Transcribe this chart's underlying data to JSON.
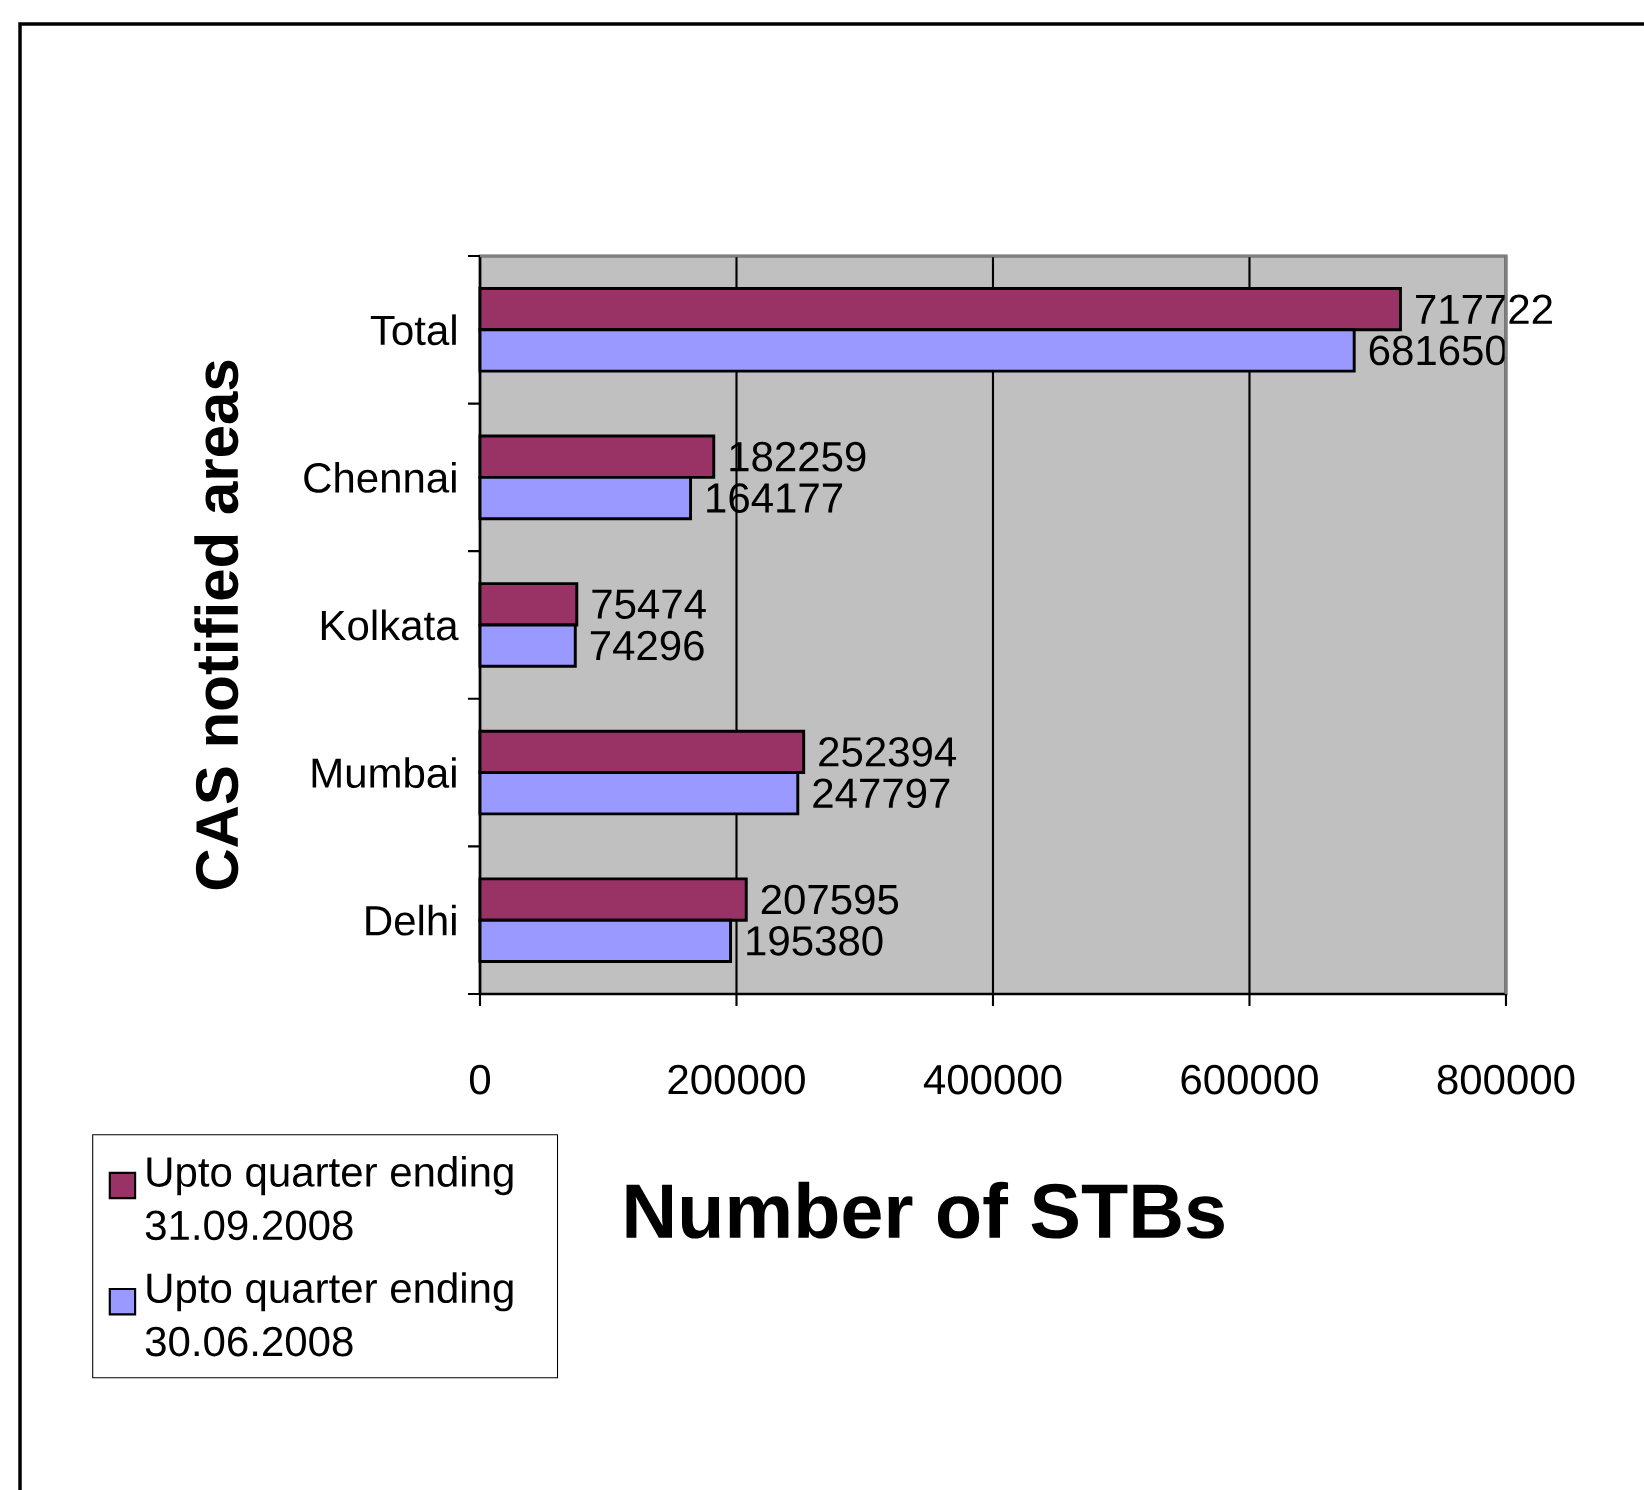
{
  "chart_data": {
    "type": "bar",
    "orientation": "horizontal",
    "xlabel": "Number of STBs",
    "ylabel": "CAS notified areas",
    "categories": [
      "Total",
      "Chennai",
      "Kolkata",
      "Mumbai",
      "Delhi"
    ],
    "series": [
      {
        "name": "Upto quarter ending 31.09.2008",
        "color": "#993366",
        "values": [
          717722,
          182259,
          75474,
          252394,
          207595
        ]
      },
      {
        "name": "Upto quarter ending 30.06.2008",
        "color": "#9999ff",
        "values": [
          681650,
          164177,
          74296,
          247797,
          195380
        ]
      }
    ],
    "xlim": [
      0,
      800000
    ],
    "xticks": [
      0,
      200000,
      400000,
      600000,
      800000
    ],
    "grid": "x",
    "legend": "bottom left",
    "data_labels": true
  }
}
